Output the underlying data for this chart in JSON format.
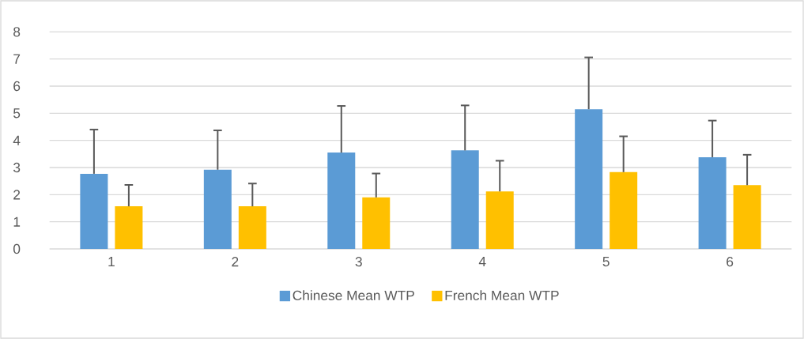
{
  "chart_data": {
    "type": "bar",
    "categories": [
      "1",
      "2",
      "3",
      "4",
      "5",
      "6"
    ],
    "series": [
      {
        "name": "Chinese  Mean WTP",
        "color": "#5b9bd5",
        "values": [
          2.77,
          2.92,
          3.55,
          3.63,
          5.15,
          3.38
        ],
        "errors": [
          [
            2.77,
            4.4
          ],
          [
            2.92,
            4.37
          ],
          [
            3.55,
            5.27
          ],
          [
            3.63,
            5.29
          ],
          [
            5.15,
            7.06
          ],
          [
            3.38,
            4.73
          ]
        ]
      },
      {
        "name": "French  Mean WTP",
        "color": "#ffc000",
        "values": [
          1.57,
          1.57,
          1.9,
          2.12,
          2.83,
          2.35
        ],
        "errors": [
          [
            1.57,
            2.36
          ],
          [
            1.57,
            2.41
          ],
          [
            1.9,
            2.78
          ],
          [
            2.12,
            3.25
          ],
          [
            2.83,
            4.15
          ],
          [
            2.35,
            3.47
          ]
        ]
      }
    ],
    "ylim": [
      0,
      8
    ],
    "yticks": [
      0,
      1,
      2,
      3,
      4,
      5,
      6,
      7,
      8
    ],
    "grid": "y",
    "legend": "bottom"
  }
}
